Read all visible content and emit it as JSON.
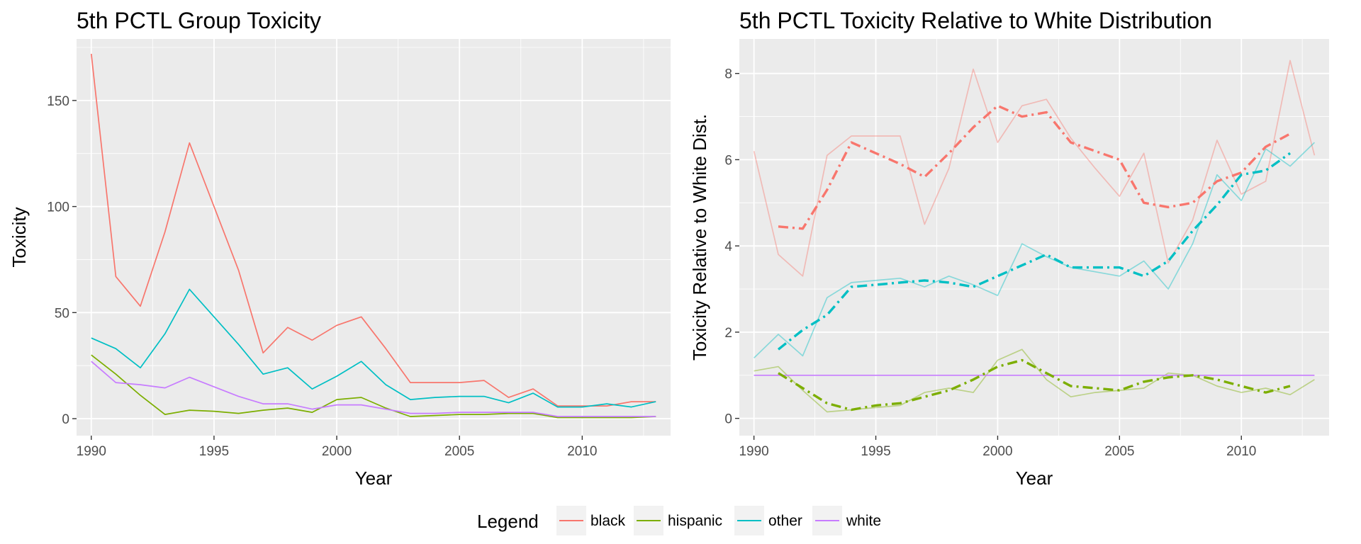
{
  "legend": {
    "title": "Legend",
    "placement": "bottom",
    "entries": [
      {
        "name": "black",
        "color": "#F8766D"
      },
      {
        "name": "hispanic",
        "color": "#7CAE00"
      },
      {
        "name": "other",
        "color": "#00BFC4"
      },
      {
        "name": "white",
        "color": "#C77CFF"
      }
    ]
  },
  "chart_data": [
    {
      "type": "line",
      "title": "5th PCTL Group Toxicity",
      "xlabel": "Year",
      "ylabel": "Toxicity",
      "xlim": [
        1989.4,
        2013.6
      ],
      "ylim": [
        -8,
        179
      ],
      "xticks": [
        1990,
        1995,
        2000,
        2005,
        2010
      ],
      "yticks": [
        0,
        50,
        100,
        150
      ],
      "grid": true,
      "x": [
        1990,
        1991,
        1992,
        1993,
        1994,
        1995,
        1996,
        1997,
        1998,
        1999,
        2000,
        2001,
        2002,
        2003,
        2004,
        2005,
        2006,
        2007,
        2008,
        2009,
        2010,
        2011,
        2012,
        2013
      ],
      "series": [
        {
          "name": "black",
          "color": "#F8766D",
          "values": [
            172,
            67,
            53,
            88,
            130,
            100,
            70,
            31,
            43,
            37,
            44,
            48,
            33,
            17,
            17,
            17,
            18,
            10,
            14,
            6,
            6,
            6,
            8,
            8
          ]
        },
        {
          "name": "hispanic",
          "color": "#7CAE00",
          "values": [
            30,
            21,
            11,
            2,
            4,
            3.5,
            2.5,
            4,
            5,
            3,
            9,
            10,
            5,
            1,
            1.5,
            2,
            2,
            2.5,
            2.5,
            0.5,
            0.5,
            0.5,
            0.5,
            1
          ]
        },
        {
          "name": "other",
          "color": "#00BFC4",
          "values": [
            38,
            33,
            24,
            40,
            61,
            48,
            35,
            21,
            24,
            14,
            20,
            27,
            16,
            9,
            10,
            10.5,
            10.5,
            7.5,
            12,
            5.5,
            5.5,
            7,
            5.5,
            8
          ]
        },
        {
          "name": "white",
          "color": "#C77CFF",
          "values": [
            27,
            17,
            16,
            14.5,
            19.5,
            15,
            10.5,
            7,
            7,
            4.5,
            6.5,
            6.5,
            4.5,
            2.5,
            2.5,
            3,
            3,
            3,
            3,
            1,
            1,
            1,
            1,
            1
          ]
        }
      ]
    },
    {
      "type": "line",
      "title": "5th PCTL Toxicity Relative to White Distribution",
      "xlabel": "Year",
      "ylabel": "Toxicity Relative to White Dist.",
      "xlim": [
        1989.4,
        2013.6
      ],
      "ylim": [
        -0.4,
        8.8
      ],
      "xticks": [
        1990,
        1995,
        2000,
        2005,
        2010
      ],
      "yticks": [
        0,
        2,
        4,
        6,
        8
      ],
      "grid": true,
      "x": [
        1990,
        1991,
        1992,
        1993,
        1994,
        1995,
        1996,
        1997,
        1998,
        1999,
        2000,
        2001,
        2002,
        2003,
        2004,
        2005,
        2006,
        2007,
        2008,
        2009,
        2010,
        2011,
        2012,
        2013
      ],
      "series": [
        {
          "name": "black",
          "color": "#F8766D",
          "values": [
            6.2,
            3.8,
            3.3,
            6.1,
            6.55,
            6.55,
            6.55,
            4.5,
            5.8,
            8.1,
            6.4,
            7.25,
            7.4,
            6.5,
            5.8,
            5.15,
            6.15,
            3.6,
            4.6,
            6.45,
            5.2,
            5.5,
            8.3,
            6.1
          ]
        },
        {
          "name": "hispanic",
          "color": "#7CAE00",
          "values": [
            1.1,
            1.2,
            0.65,
            0.15,
            0.2,
            0.25,
            0.3,
            0.6,
            0.7,
            0.6,
            1.35,
            1.6,
            0.9,
            0.5,
            0.6,
            0.65,
            0.7,
            1.05,
            1.0,
            0.75,
            0.6,
            0.7,
            0.55,
            0.9
          ]
        },
        {
          "name": "other",
          "color": "#00BFC4",
          "values": [
            1.4,
            1.95,
            1.45,
            2.8,
            3.15,
            3.2,
            3.25,
            3.05,
            3.3,
            3.1,
            2.85,
            4.05,
            3.75,
            3.5,
            3.4,
            3.3,
            3.65,
            3.0,
            4.05,
            5.65,
            5.05,
            6.25,
            5.85,
            6.4
          ]
        },
        {
          "name": "white",
          "color": "#C77CFF",
          "values": [
            1,
            1,
            1,
            1,
            1,
            1,
            1,
            1,
            1,
            1,
            1,
            1,
            1,
            1,
            1,
            1,
            1,
            1,
            1,
            1,
            1,
            1,
            1,
            1
          ]
        }
      ],
      "trend_x": [
        1991,
        1992,
        1993,
        1994,
        1995,
        1996,
        1997,
        1998,
        1999,
        2000,
        2001,
        2002,
        2003,
        2004,
        2005,
        2006,
        2007,
        2008,
        2009,
        2010,
        2011,
        2012
      ],
      "trend_series": [
        {
          "name": "black",
          "color": "#F8766D",
          "values": [
            4.45,
            4.4,
            5.3,
            6.4,
            6.15,
            5.9,
            5.6,
            6.15,
            6.75,
            7.25,
            7.0,
            7.1,
            6.4,
            6.2,
            6.0,
            5.0,
            4.9,
            5.0,
            5.5,
            5.7,
            6.3,
            6.6
          ]
        },
        {
          "name": "hispanic",
          "color": "#7CAE00",
          "values": [
            1.05,
            0.7,
            0.35,
            0.2,
            0.3,
            0.35,
            0.5,
            0.65,
            0.9,
            1.2,
            1.35,
            1.05,
            0.75,
            0.7,
            0.65,
            0.85,
            0.95,
            1.0,
            0.9,
            0.75,
            0.6,
            0.75
          ]
        },
        {
          "name": "other",
          "color": "#00BFC4",
          "values": [
            1.6,
            2.05,
            2.4,
            3.05,
            3.1,
            3.15,
            3.2,
            3.15,
            3.05,
            3.3,
            3.55,
            3.8,
            3.5,
            3.5,
            3.5,
            3.3,
            3.65,
            4.35,
            4.95,
            5.65,
            5.75,
            6.15
          ]
        }
      ]
    }
  ]
}
